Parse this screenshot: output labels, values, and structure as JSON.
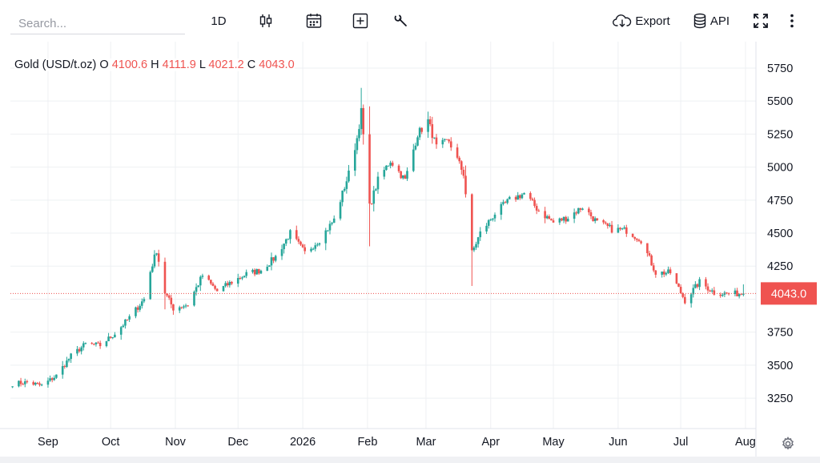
{
  "toolbar": {
    "search_placeholder": "Search...",
    "interval_label": "1D",
    "candles_icon": "candlestick-icon",
    "calendar_icon": "calendar-icon",
    "add_icon": "plus-square-icon",
    "tools_icon": "wrench-icon",
    "export_label": "Export",
    "export_icon": "cloud-download-icon",
    "api_label": "API",
    "api_icon": "database-icon",
    "fullscreen_icon": "fullscreen-icon",
    "more_icon": "more-vertical-icon"
  },
  "legend": {
    "symbol": "Gold (USD/t.oz)",
    "o_label": "O",
    "o_value": "4100.6",
    "h_label": "H",
    "h_value": "4111.9",
    "l_label": "L",
    "l_value": "4021.2",
    "c_label": "C",
    "c_value": "4043.0"
  },
  "settings_icon": "gear-icon",
  "chart_data": {
    "type": "candlestick",
    "x_tick_labels": [
      "Sep",
      "Oct",
      "Nov",
      "Dec",
      "2026",
      "Feb",
      "Mar",
      "Apr",
      "May",
      "Jun",
      "Jul",
      "Aug"
    ],
    "y_ticks": [
      3250,
      3500,
      3750,
      4000,
      4250,
      4500,
      4750,
      5000,
      5250,
      5500,
      5750
    ],
    "y_tick_labels": [
      "3250",
      "3500",
      "3750",
      "",
      "4250",
      "4500",
      "4750",
      "5000",
      "5250",
      "5500",
      "5750"
    ],
    "ylim": [
      3020,
      5950
    ],
    "last_price": 4043.0,
    "last_price_label": "4043.0",
    "grid": true,
    "colors": {
      "up": "#26a69a",
      "down": "#ef5350",
      "grid": "#eef0f3",
      "price_line": "#ef5350"
    },
    "price_path": [
      [
        "2025-08-15",
        3360
      ],
      [
        "2025-08-22",
        3370
      ],
      [
        "2025-08-29",
        3345
      ],
      [
        "2025-09-05",
        3420
      ],
      [
        "2025-09-12",
        3570
      ],
      [
        "2025-09-19",
        3660
      ],
      [
        "2025-09-26",
        3650
      ],
      [
        "2025-10-03",
        3740
      ],
      [
        "2025-10-10",
        3860
      ],
      [
        "2025-10-17",
        4000
      ],
      [
        "2025-10-20",
        4210
      ],
      [
        "2025-10-23",
        4370
      ],
      [
        "2025-10-27",
        4050
      ],
      [
        "2025-10-31",
        3930
      ],
      [
        "2025-11-07",
        3960
      ],
      [
        "2025-11-14",
        4180
      ],
      [
        "2025-11-21",
        4060
      ],
      [
        "2025-11-28",
        4130
      ],
      [
        "2025-12-05",
        4190
      ],
      [
        "2025-12-12",
        4220
      ],
      [
        "2025-12-19",
        4320
      ],
      [
        "2025-12-26",
        4500
      ],
      [
        "2026-01-02",
        4350
      ],
      [
        "2026-01-09",
        4450
      ],
      [
        "2026-01-16",
        4600
      ],
      [
        "2026-01-23",
        4950
      ],
      [
        "2026-01-27",
        5220
      ],
      [
        "2026-01-29",
        5420
      ],
      [
        "2026-02-02",
        4700
      ],
      [
        "2026-02-06",
        4900
      ],
      [
        "2026-02-12",
        5050
      ],
      [
        "2026-02-19",
        4900
      ],
      [
        "2026-02-25",
        5250
      ],
      [
        "2026-03-02",
        5350
      ],
      [
        "2026-03-06",
        5150
      ],
      [
        "2026-03-12",
        5200
      ],
      [
        "2026-03-19",
        4950
      ],
      [
        "2026-03-23",
        4350
      ],
      [
        "2026-03-27",
        4500
      ],
      [
        "2026-04-03",
        4650
      ],
      [
        "2026-04-10",
        4750
      ],
      [
        "2026-04-17",
        4800
      ],
      [
        "2026-04-24",
        4670
      ],
      [
        "2026-05-01",
        4580
      ],
      [
        "2026-05-08",
        4620
      ],
      [
        "2026-05-15",
        4700
      ],
      [
        "2026-05-22",
        4580
      ],
      [
        "2026-05-29",
        4530
      ],
      [
        "2026-06-05",
        4520
      ],
      [
        "2026-06-12",
        4450
      ],
      [
        "2026-06-19",
        4200
      ],
      [
        "2026-06-26",
        4200
      ],
      [
        "2026-07-03",
        3990
      ],
      [
        "2026-07-10",
        4130
      ],
      [
        "2026-07-17",
        4050
      ],
      [
        "2026-07-24",
        4040
      ],
      [
        "2026-07-31",
        4043
      ]
    ]
  }
}
